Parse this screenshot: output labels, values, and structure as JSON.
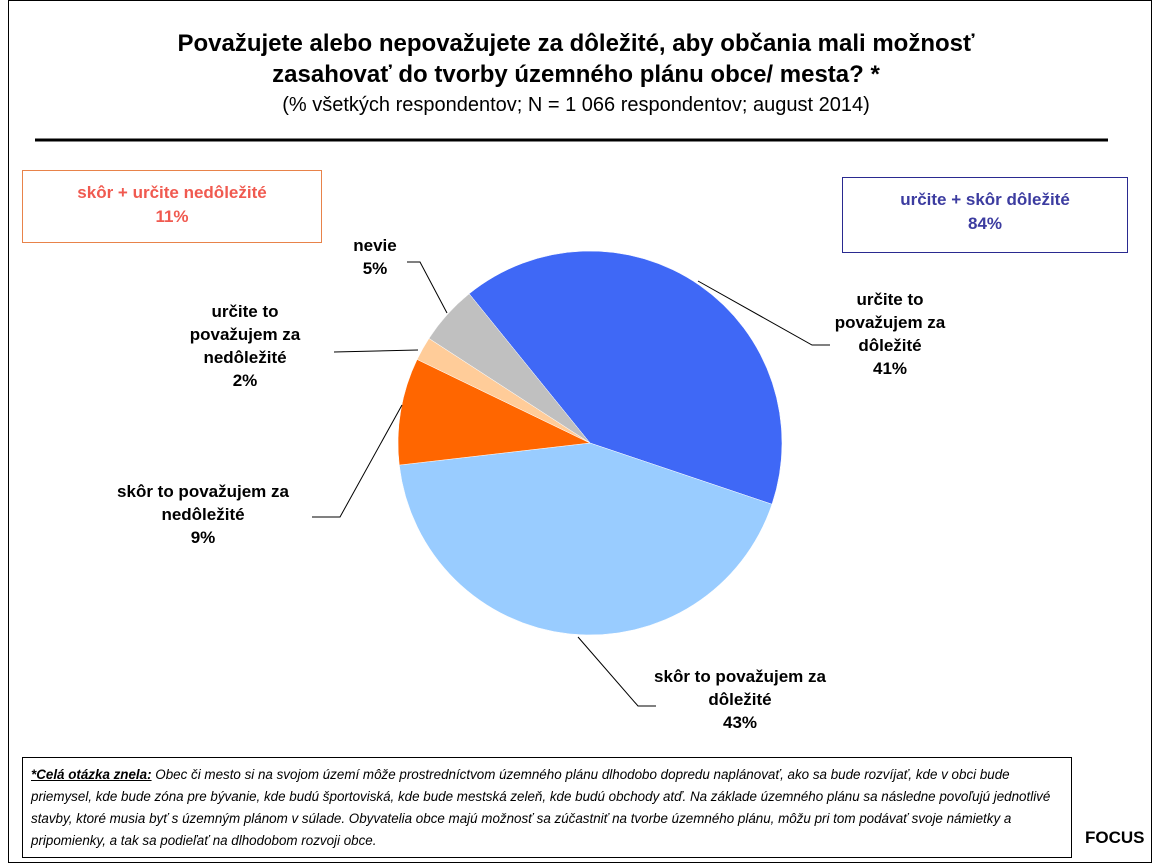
{
  "chart_data": {
    "type": "pie",
    "title": "Považujete alebo nepovažujete za dôležité, aby občania mali možnosť zasahovať do tvorby územného plánu obce/ mesta? *",
    "subtitle": "(% všetkých respondentov; N = 1 066 respondentov; august 2014)",
    "categories": [
      "určite to považujem za dôležité",
      "skôr to považujem za dôležité",
      "skôr to považujem za nedôležité",
      "určite to považujem za nedôležité",
      "nevie"
    ],
    "values": [
      41,
      43,
      9,
      2,
      5
    ],
    "value_labels": [
      "41%",
      "43%",
      "9%",
      "2%",
      "5%"
    ],
    "colors": [
      "#3f68f6",
      "#99ccff",
      "#ff6600",
      "#ffcc99",
      "#c0c0c0"
    ],
    "annotations": [
      {
        "text": "skôr + určite nedôležité",
        "label": "11%",
        "color": "#f05a50",
        "border": "#e8834a"
      },
      {
        "text": "určite + skôr dôležité",
        "label": "84%",
        "color": "#3c3ca0",
        "border": "#2a2a90"
      }
    ],
    "note_label": "*Celá otázka znela:",
    "note": "Obec či mesto si na svojom území môže prostredníctvom územného plánu dlhodobo dopredu naplánovať, ako sa bude rozvíjať, kde v obci bude priemysel, kde bude zóna pre bývanie, kde budú športoviská, kde bude mestská zeleň, kde budú obchody atď. Na základe územného plánu sa následne povoľujú jednotlivé stavby, ktoré musia byť s územným plánom v súlade. Obyvatelia obce majú možnosť sa zúčastniť na tvorbe územného plánu, môžu pri tom podávať svoje námietky a pripomienky, a tak sa podieľať na dlhodobom rozvoji obce.",
    "source": "FOCUS"
  }
}
